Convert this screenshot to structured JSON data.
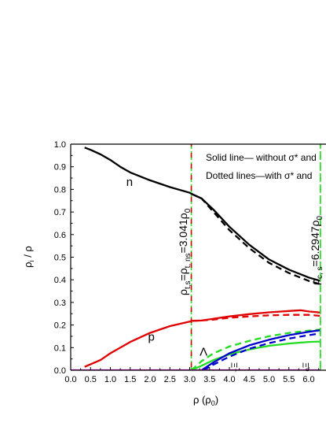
{
  "chart_data": {
    "type": "line",
    "xlabel": "ρ (ρ0)",
    "xlabel_parts": [
      "ρ (ρ",
      "0",
      ")"
    ],
    "ylabel": "ρi / ρ",
    "ylabel_parts": [
      "ρ",
      "i",
      " / ρ"
    ],
    "xlim": [
      0.0,
      6.3
    ],
    "ylim": [
      0.0,
      1.0
    ],
    "x_ticks": [
      "0.0",
      "0.5",
      "1.0",
      "1.5",
      "2.0",
      "2.5",
      "3.0",
      "3.5",
      "4.0",
      "4.5",
      "5.0",
      "5.5",
      "6.0"
    ],
    "y_ticks": [
      "0.0",
      "0.1",
      "0.2",
      "0.3",
      "0.4",
      "0.5",
      "0.6",
      "0.7",
      "0.8",
      "0.9",
      "1.0"
    ],
    "grid": false,
    "legend_text": {
      "solid": "Solid line— without σ* and",
      "dotted": "Dotted lines—with σ* and"
    },
    "series": [
      {
        "label": "n",
        "color": "#000000",
        "style": "solid",
        "x": [
          0.35,
          0.5,
          0.75,
          1.0,
          1.25,
          1.5,
          2.0,
          2.5,
          3.0,
          3.041,
          3.3,
          3.6,
          4.0,
          4.5,
          5.0,
          5.5,
          6.0,
          6.3
        ],
        "y": [
          0.985,
          0.975,
          0.955,
          0.93,
          0.9,
          0.875,
          0.84,
          0.81,
          0.785,
          0.78,
          0.76,
          0.71,
          0.635,
          0.555,
          0.49,
          0.445,
          0.41,
          0.395
        ]
      },
      {
        "label": "n",
        "color": "#000000",
        "style": "dashed",
        "x": [
          3.041,
          3.3,
          3.6,
          4.0,
          4.5,
          5.0,
          5.5,
          6.0,
          6.3
        ],
        "y": [
          0.78,
          0.76,
          0.7,
          0.62,
          0.54,
          0.475,
          0.43,
          0.395,
          0.38
        ]
      },
      {
        "label": "p",
        "color": "#e00000",
        "style": "solid",
        "x": [
          0.35,
          0.75,
          1.0,
          1.5,
          2.0,
          2.5,
          3.0,
          3.041,
          3.3,
          3.5,
          4.0,
          4.5,
          5.0,
          5.5,
          5.8,
          6.0,
          6.3
        ],
        "y": [
          0.015,
          0.045,
          0.075,
          0.125,
          0.165,
          0.195,
          0.215,
          0.218,
          0.22,
          0.225,
          0.238,
          0.248,
          0.256,
          0.262,
          0.265,
          0.26,
          0.255
        ]
      },
      {
        "label": "p",
        "color": "#e00000",
        "style": "dashed",
        "x": [
          3.041,
          3.5,
          4.0,
          4.5,
          5.0,
          5.5,
          6.0,
          6.3
        ],
        "y": [
          0.218,
          0.222,
          0.232,
          0.238,
          0.243,
          0.245,
          0.245,
          0.24
        ]
      },
      {
        "label": "Λ",
        "color": "#22dd22",
        "style": "solid",
        "x": [
          3.041,
          3.3,
          3.6,
          4.0,
          4.5,
          5.0,
          5.5,
          6.0,
          6.3
        ],
        "y": [
          0.0,
          0.02,
          0.045,
          0.07,
          0.092,
          0.108,
          0.118,
          0.125,
          0.127
        ]
      },
      {
        "label": "Λ",
        "color": "#22dd22",
        "style": "dashed",
        "x": [
          3.041,
          3.3,
          3.6,
          4.0,
          4.5,
          5.0,
          5.5,
          6.0,
          6.3
        ],
        "y": [
          0.0,
          0.04,
          0.075,
          0.105,
          0.13,
          0.15,
          0.165,
          0.175,
          0.18
        ]
      },
      {
        "label": "Ξ⁻",
        "color": "#0000cc",
        "style": "solid",
        "x": [
          3.3,
          3.6,
          4.0,
          4.5,
          5.0,
          5.5,
          6.0,
          6.3
        ],
        "y": [
          0.0,
          0.035,
          0.075,
          0.11,
          0.135,
          0.155,
          0.17,
          0.177
        ]
      },
      {
        "label": "Ξ⁻",
        "color": "#0000cc",
        "style": "dashed",
        "x": [
          3.35,
          3.6,
          4.0,
          4.5,
          5.0,
          5.5,
          6.0,
          6.3
        ],
        "y": [
          0.0,
          0.025,
          0.06,
          0.095,
          0.12,
          0.14,
          0.155,
          0.163
        ]
      },
      {
        "label": "Ξ⁰",
        "color": "#dd00dd",
        "style": "solid",
        "x": [
          0.0,
          6.3
        ],
        "y": [
          0.0,
          0.0
        ]
      }
    ],
    "vertical_markers": [
      {
        "x": 3.041,
        "label": "ρt,s=ρt,ns=3.041ρ0",
        "color_a": "#e00000",
        "color_b": "#22dd22"
      },
      {
        "x": 6.2947,
        "label": "ρc,s=6.2947ρ0",
        "color_a": "#22dd22",
        "color_b": "#22dd22"
      }
    ],
    "annotations": [
      {
        "text": "n",
        "x": 1.4,
        "y": 0.815,
        "color": "#000000"
      },
      {
        "text": "p",
        "x": 1.95,
        "y": 0.13,
        "color": "#000000"
      },
      {
        "text": "Λ",
        "x": 3.25,
        "y": 0.065,
        "color": "#000000"
      },
      {
        "text": "Ξ⁻",
        "x": 4.05,
        "y": 0.035,
        "color": "#000000",
        "rotate": 90
      },
      {
        "text": "Ξ⁰",
        "x": 5.85,
        "y": 0.035,
        "color": "#000000",
        "rotate": 90
      }
    ],
    "vertical_labels": {
      "left": {
        "main": "ρ",
        "sub1": "t,s",
        "mid": "=ρ",
        "sub2": "t, ns",
        "tail": "=3.041ρ",
        "sub3": "0"
      },
      "right": {
        "main": "ρ",
        "sub1": "c, s",
        "tail": "=6.2947ρ",
        "sub3": "0"
      }
    }
  }
}
